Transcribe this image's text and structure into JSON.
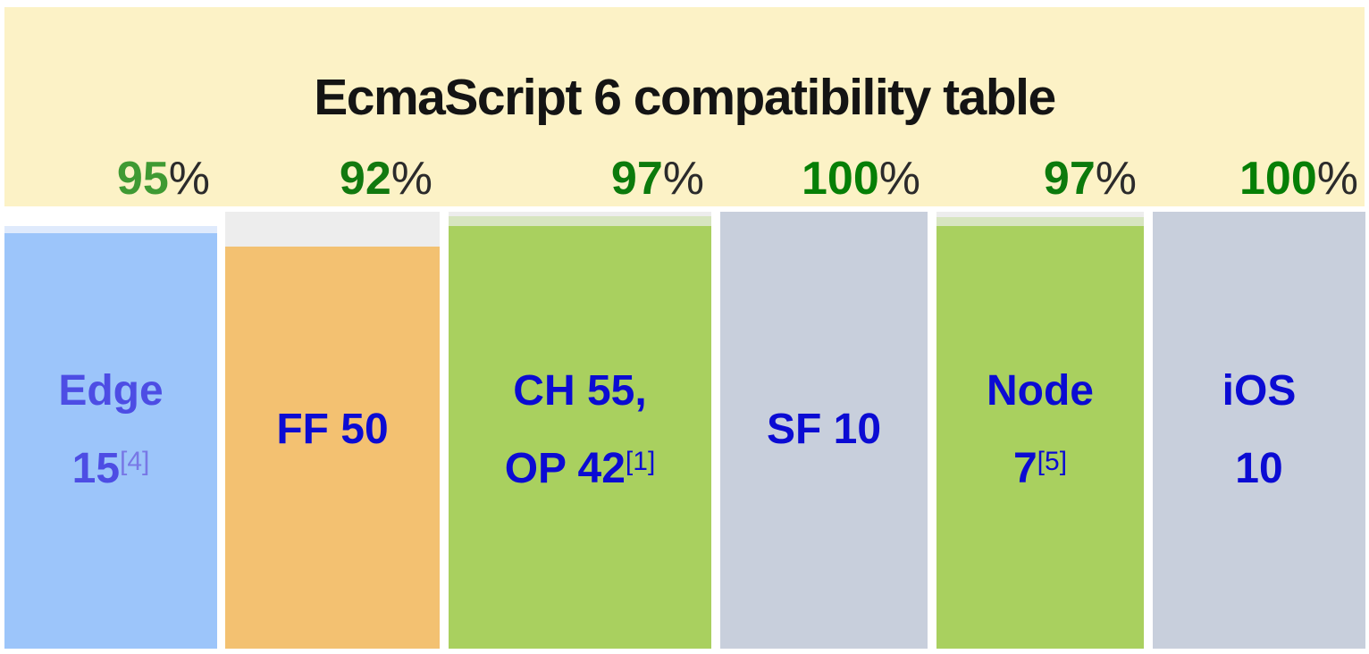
{
  "title": "EcmaScript 6 compatibility table",
  "percent_sign": "%",
  "colors": {
    "banner_bg": "#fcf2c6",
    "title_text": "#141414",
    "percent_sign_text": "#2b2b2b",
    "default_label_text": "#0b0bd3",
    "unfilled_gray": "#ededed"
  },
  "chart_data": {
    "type": "bar",
    "title": "EcmaScript 6 compatibility table",
    "categories": [
      "Edge 15[4]",
      "FF 50",
      "CH 55, OP 42[1]",
      "SF 10",
      "Node 7[5]",
      "iOS 10"
    ],
    "values": [
      95,
      92,
      97,
      100,
      97,
      100
    ],
    "unit": "%",
    "ylim": [
      0,
      100
    ],
    "bar_colors": [
      "#9cc5fa",
      "#f3c171",
      "#a9d05f",
      "#c8cfdc",
      "#a9d05f",
      "#c8cfdc"
    ],
    "value_label_colors": [
      "#3f9a33",
      "#12790f",
      "#0c7a0c",
      "#067f06",
      "#0c7a0c",
      "#067f06"
    ],
    "legend": "none",
    "grid": "off"
  },
  "columns": [
    {
      "id": "edge-15",
      "percent": "95",
      "percent_color": "#3f9a33",
      "line1": "Edge",
      "line2": "15",
      "sup": "[4]",
      "fill_color": "#9cc5fa",
      "label_color": "#4d4de4",
      "sup_color": "#7878e6",
      "segments": [
        {
          "color": "#ffffff"
        },
        {
          "color": "#dfeafc"
        }
      ]
    },
    {
      "id": "ff-50",
      "percent": "92",
      "percent_color": "#12790f",
      "line1": "FF 50",
      "fill_color": "#f3c171",
      "label_color": "#0b0bd3",
      "segments": [
        {
          "color": "#ededed"
        }
      ]
    },
    {
      "id": "ch-55-op-42",
      "percent": "97",
      "percent_color": "#0c7a0c",
      "line1": "CH 55,",
      "line2": "OP 42",
      "sup": "[1]",
      "fill_color": "#a9d05f",
      "label_color": "#0b0bd3",
      "segments": [
        {
          "color": "#ededed"
        },
        {
          "color": "#d7e5c0"
        }
      ]
    },
    {
      "id": "sf-10",
      "percent": "100",
      "percent_color": "#067f06",
      "line1": "SF 10",
      "fill_color": "#c8cfdc",
      "label_color": "#0b0bd3",
      "segments": []
    },
    {
      "id": "node-7",
      "percent": "97",
      "percent_color": "#0c7a0c",
      "line1": "Node",
      "line2": "7",
      "sup": "[5]",
      "fill_color": "#a9d05f",
      "label_color": "#0b0bd3",
      "segments": [
        {
          "color": "#ededed"
        },
        {
          "color": "#d7e5c0"
        }
      ]
    },
    {
      "id": "ios-10",
      "percent": "100",
      "percent_color": "#067f06",
      "line1": "iOS",
      "line2": "10",
      "fill_color": "#c8cfdc",
      "label_color": "#0b0bd3",
      "segments": []
    }
  ]
}
